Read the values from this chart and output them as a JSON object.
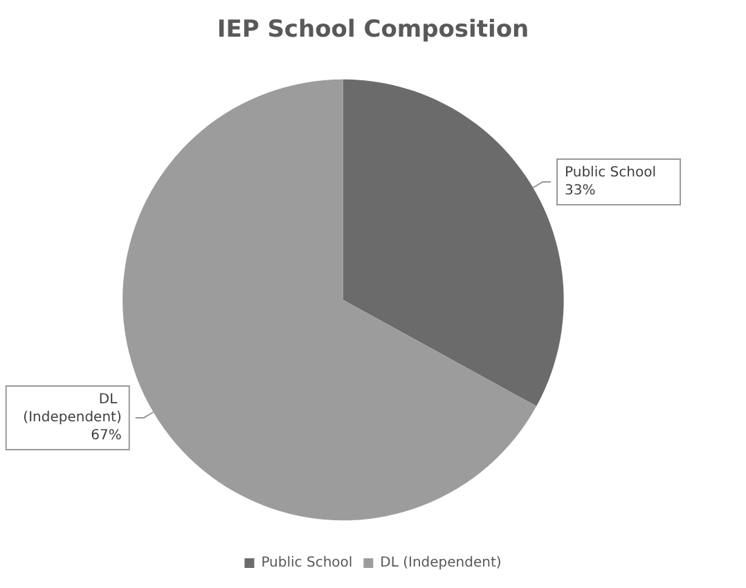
{
  "chart_data": {
    "type": "pie",
    "title": "IEP School Composition",
    "categories": [
      "Public School",
      "DL (Independent)"
    ],
    "values": [
      33,
      67
    ],
    "colors": [
      "#6b6b6b",
      "#9c9c9c"
    ],
    "value_labels": [
      "33%",
      "67%"
    ],
    "legend": "bottom"
  }
}
